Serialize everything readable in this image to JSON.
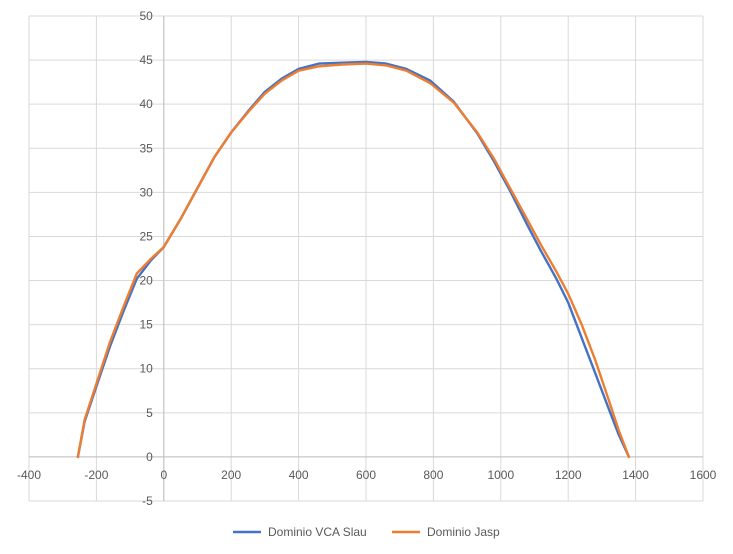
{
  "chart_data": {
    "type": "line",
    "title": "",
    "xlabel": "",
    "ylabel": "",
    "xlim": [
      -400,
      1600
    ],
    "ylim": [
      -5,
      50
    ],
    "x_ticks": [
      -400,
      -200,
      0,
      200,
      400,
      600,
      800,
      1000,
      1200,
      1400,
      1600
    ],
    "y_ticks": [
      -5,
      0,
      5,
      10,
      15,
      20,
      25,
      30,
      35,
      40,
      45,
      50
    ],
    "grid": true,
    "legend_position": "bottom",
    "series": [
      {
        "name": "Dominio VCA Slau",
        "color": "#4472C4",
        "x": [
          -255,
          -235,
          -200,
          -160,
          -120,
          -80,
          -40,
          0,
          50,
          100,
          150,
          200,
          250,
          300,
          350,
          400,
          460,
          530,
          600,
          660,
          720,
          790,
          860,
          930,
          980,
          1030,
          1080,
          1120,
          1165,
          1200,
          1240,
          1280,
          1320,
          1350,
          1380
        ],
        "y": [
          0,
          4,
          8,
          12.5,
          16.5,
          20.2,
          22.2,
          23.8,
          27,
          30.5,
          34,
          36.8,
          39.2,
          41.4,
          42.9,
          44,
          44.6,
          44.7,
          44.8,
          44.6,
          44,
          42.7,
          40.3,
          36.7,
          33.5,
          30,
          26.2,
          23.3,
          20.2,
          17.5,
          13.5,
          9.5,
          5.5,
          2.5,
          0
        ]
      },
      {
        "name": "Dominio Jasp",
        "color": "#ED7D31",
        "x": [
          -255,
          -235,
          -200,
          -160,
          -120,
          -80,
          -40,
          0,
          50,
          100,
          150,
          200,
          250,
          300,
          350,
          400,
          460,
          530,
          600,
          660,
          720,
          790,
          860,
          930,
          980,
          1030,
          1080,
          1120,
          1165,
          1200,
          1240,
          1280,
          1320,
          1350,
          1380
        ],
        "y": [
          0,
          4.2,
          8.3,
          13,
          17,
          20.8,
          22.4,
          23.8,
          27,
          30.5,
          34,
          36.8,
          39.1,
          41.2,
          42.7,
          43.8,
          44.3,
          44.5,
          44.6,
          44.4,
          43.8,
          42.4,
          40.2,
          36.8,
          33.8,
          30.3,
          26.8,
          24,
          21,
          18.5,
          15,
          11,
          6.5,
          3,
          0
        ]
      }
    ]
  }
}
